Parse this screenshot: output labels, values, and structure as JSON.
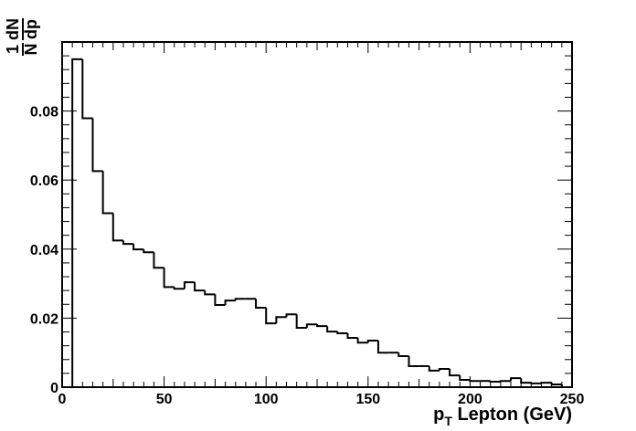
{
  "chart_data": {
    "type": "histogram",
    "xlabel_parts": [
      "p",
      "T",
      " Lepton (GeV)"
    ],
    "ylabel_parts": [
      "1",
      "N",
      "dN",
      "dp"
    ],
    "bins": [
      0,
      5,
      10,
      15,
      20,
      25,
      30,
      35,
      40,
      45,
      50,
      55,
      60,
      65,
      70,
      75,
      80,
      85,
      90,
      95,
      100,
      105,
      110,
      115,
      120,
      125,
      130,
      135,
      140,
      145,
      150,
      155,
      160,
      165,
      170,
      175,
      180,
      185,
      190,
      195,
      200,
      205,
      210,
      215,
      220,
      225,
      230,
      235,
      240,
      245,
      250
    ],
    "counts": [
      0,
      0.095,
      0.0779,
      0.0626,
      0.0504,
      0.0425,
      0.0415,
      0.0399,
      0.0391,
      0.0346,
      0.029,
      0.0285,
      0.0304,
      0.028,
      0.0269,
      0.0238,
      0.0251,
      0.0256,
      0.0256,
      0.023,
      0.0185,
      0.0203,
      0.0211,
      0.0172,
      0.0182,
      0.0177,
      0.0161,
      0.0156,
      0.0143,
      0.0129,
      0.0135,
      0.01,
      0.01,
      0.009,
      0.0061,
      0.0061,
      0.0048,
      0.0053,
      0.0034,
      0.0021,
      0.0018,
      0.0018,
      0.0016,
      0.0018,
      0.0026,
      0.0013,
      0.0011,
      0.0013,
      0.0008,
      0
    ],
    "color": "#000000",
    "xlim": [
      0,
      250
    ],
    "ylim": [
      0,
      0.1
    ],
    "xticks": [
      0,
      50,
      100,
      150,
      200,
      250
    ],
    "yticks": [
      0,
      0.02,
      0.04,
      0.06,
      0.08
    ]
  }
}
